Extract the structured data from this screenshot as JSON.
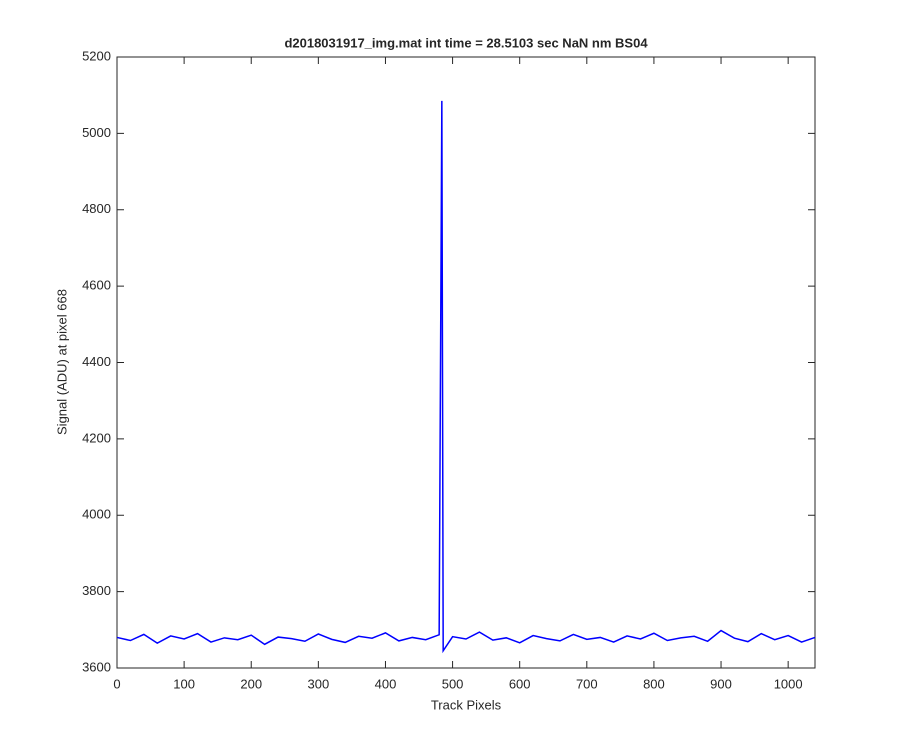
{
  "chart_data": {
    "type": "line",
    "title": "d2018031917_img.mat int time = 28.5103 sec  NaN nm BS04",
    "x_label": "Track Pixels",
    "y_label": "Signal (ADU) at pixel 668",
    "x": [
      0,
      20,
      40,
      60,
      80,
      100,
      120,
      140,
      160,
      180,
      200,
      220,
      240,
      260,
      280,
      300,
      320,
      340,
      360,
      380,
      400,
      420,
      440,
      460,
      480,
      484,
      486,
      500,
      520,
      540,
      560,
      580,
      600,
      620,
      640,
      660,
      680,
      700,
      720,
      740,
      760,
      780,
      800,
      820,
      840,
      860,
      880,
      900,
      920,
      940,
      960,
      980,
      1000,
      1020,
      1040
    ],
    "series": [
      {
        "name": "Signal",
        "color": "#0000ff",
        "values": [
          3680,
          3672,
          3688,
          3665,
          3684,
          3676,
          3690,
          3668,
          3679,
          3674,
          3686,
          3662,
          3681,
          3677,
          3670,
          3689,
          3675,
          3667,
          3683,
          3678,
          3692,
          3671,
          3680,
          3674,
          3687,
          5085,
          3645,
          3682,
          3676,
          3694,
          3673,
          3679,
          3666,
          3685,
          3677,
          3671,
          3688,
          3675,
          3680,
          3668,
          3684,
          3676,
          3691,
          3672,
          3679,
          3683,
          3670,
          3698,
          3678,
          3669,
          3690,
          3674,
          3685,
          3668,
          3680
        ]
      }
    ],
    "xlim": [
      0,
      1040
    ],
    "ylim": [
      3600,
      5200
    ],
    "xticks": [
      0,
      100,
      200,
      300,
      400,
      500,
      600,
      700,
      800,
      900,
      1000
    ],
    "yticks": [
      3600,
      3800,
      4000,
      4200,
      4400,
      4600,
      4800,
      5000,
      5200
    ],
    "grid": false
  }
}
